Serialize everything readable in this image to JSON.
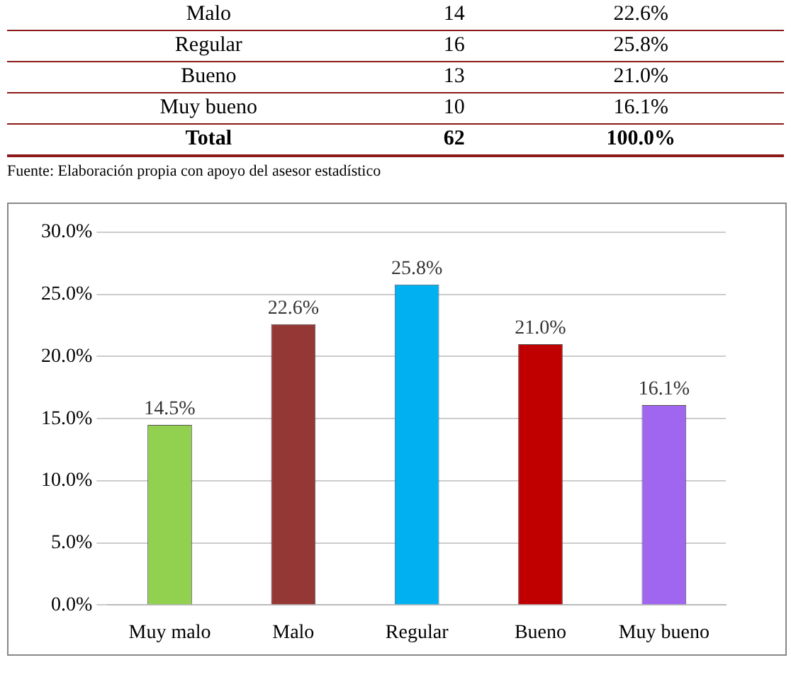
{
  "chart_data": [
    {
      "type": "other",
      "annotations": [
        "Malo",
        "14",
        "22.6%",
        "Regular",
        "16",
        "25.8%",
        "Bueno",
        "13",
        "21.0%",
        "Muy bueno",
        "10",
        "16.1%",
        "Total",
        "62",
        "100.0%"
      ]
    },
    {
      "type": "bar",
      "annotations": [
        "Fuente: Elaboración propia con apoyo del asesor estadístico"
      ],
      "categories": [
        "Muy malo",
        "Malo",
        "Regular",
        "Bueno",
        "Muy bueno"
      ],
      "values": [
        14.5,
        22.6,
        25.8,
        21.0,
        16.1
      ],
      "colors": [
        "#92d050",
        "#953735",
        "#00b0f0",
        "#c00000",
        "#a066f0"
      ],
      "value_labels": [
        "14.5%",
        "22.6%",
        "25.8%",
        "21.0%",
        "16.1%"
      ],
      "ylim": [
        0,
        30
      ],
      "yticks": [
        {
          "value": 0,
          "label": "0.0%"
        },
        {
          "value": 5,
          "label": "5.0%"
        },
        {
          "value": 10,
          "label": "10.0%"
        },
        {
          "value": 15,
          "label": "15.0%"
        },
        {
          "value": 20,
          "label": "20.0%"
        },
        {
          "value": 25,
          "label": "25.0%"
        },
        {
          "value": 30,
          "label": "30.0%"
        }
      ],
      "grid": "y",
      "legend": false
    }
  ]
}
